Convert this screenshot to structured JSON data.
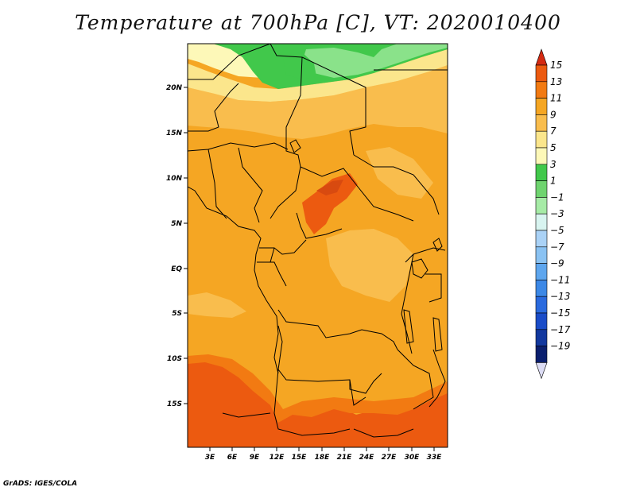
{
  "title": "Temperature at 700hPa [C], VT: 2020010400",
  "credit": "GrADS: IGES/COLA",
  "map": {
    "lat_ticks": [
      "20N",
      "15N",
      "10N",
      "5N",
      "EQ",
      "5S",
      "10S",
      "15S"
    ],
    "lon_ticks": [
      "3E",
      "6E",
      "9E",
      "12E",
      "15E",
      "18E",
      "21E",
      "24E",
      "27E",
      "30E",
      "33E"
    ],
    "colors": {
      "orange": "#f5a623",
      "light_orange": "#f9bd4d",
      "dark_orange": "#f27a12",
      "red_orange": "#ec5a10",
      "pale_yellow": "#fbe68c",
      "very_pale": "#fdf8b8",
      "green": "#41c84b",
      "light_green": "#8ae28a"
    }
  },
  "colorbar": {
    "labels": [
      "15",
      "13",
      "11",
      "9",
      "7",
      "5",
      "3",
      "1",
      "−1",
      "−3",
      "−5",
      "−7",
      "−9",
      "−11",
      "−13",
      "−15",
      "−17",
      "−19"
    ],
    "colors": [
      "#d42a12",
      "#ec5a10",
      "#f27a12",
      "#f5a623",
      "#f9bd4d",
      "#fbe68c",
      "#fdf8b8",
      "#41c84b",
      "#6fd46f",
      "#a6eba6",
      "#d8f4f0",
      "#aad2f6",
      "#8ac2f2",
      "#5ea6ee",
      "#3c88e6",
      "#2a6ade",
      "#1a4cc8",
      "#12389e",
      "#0a1f6e",
      "#dcdcf4"
    ]
  }
}
